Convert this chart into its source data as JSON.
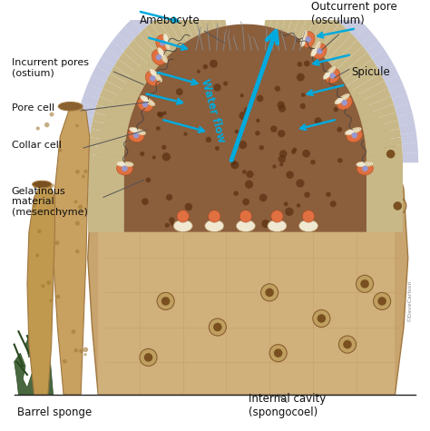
{
  "background_color": "#ffffff",
  "labels": {
    "amebocyte": "Amebocyte",
    "incurrent_pores": "Incurrent pores\n(ostium)",
    "pore_cell": "Pore cell",
    "collar_cell": "Collar cell",
    "gelatinous": "Gelatinous\nmaterial\n(mesenchyme)",
    "outcurrent": "Outcurrent pore\n(osculum)",
    "spicule": "Spicule",
    "water_flow": "Water flow",
    "barrel_sponge": "Barrel sponge",
    "internal_cavity": "Internal cavity\n(spongocoel)"
  },
  "sponge_outer_color": "#c8a46e",
  "sponge_outer_edge": "#a07840",
  "sponge_lower_color": "#d4b87a",
  "inner_wall_tan": "#d4b87a",
  "inner_wall_lavender": "#c8cce8",
  "spongocoel_color": "#8b5e3c",
  "spongocoel_dark": "#6b3e20",
  "water_arrow_color": "#00aadd",
  "label_line_color": "#555555",
  "text_color": "#111111",
  "copyright": "©DaveCarlson",
  "collar_cell_color": "#e07840",
  "collar_white": "#f0e8d0",
  "lavender_cell": "#9090c0"
}
